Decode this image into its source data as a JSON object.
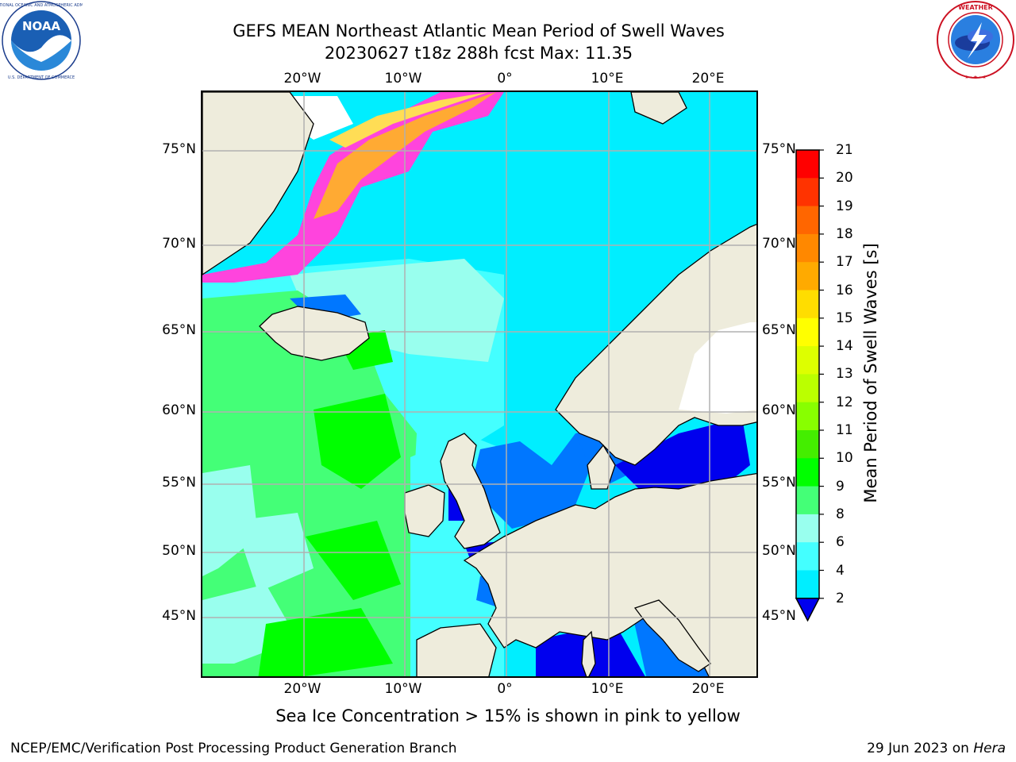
{
  "header": {
    "title_line1": "GEFS MEAN Northeast Atlantic Mean Period of Swell Waves",
    "title_line2": "20230627 t18z 288h fcst   Max: 11.35"
  },
  "logos": {
    "noaa": {
      "icon": "noaa-logo-icon",
      "text": "NOAA",
      "ring_text": "NATIONAL OCEANIC AND ATMOSPHERIC ADMINISTRATION · U.S. DEPARTMENT OF COMMERCE"
    },
    "nws": {
      "icon": "nws-logo-icon",
      "ring_text": "NATIONAL WEATHER SERVICE"
    }
  },
  "map": {
    "region": "Northeast Atlantic",
    "lon_labels": [
      "20°W",
      "10°W",
      "0°",
      "10°E",
      "20°E"
    ],
    "lat_labels_left": [
      "75°N",
      "70°N",
      "65°N",
      "60°N",
      "55°N",
      "50°N",
      "45°N"
    ],
    "lat_labels_right": [
      "75°N",
      "70°N",
      "65°N",
      "60°N",
      "55°N",
      "50°N",
      "45°N"
    ],
    "colors": {
      "land": "#eeecdc",
      "ice_pink": "#ff44dd",
      "ice_orange": "#ffaa33",
      "ice_yellow": "#ffdd55",
      "no_data": "#ffffff",
      "grid": "#b0b0b0"
    }
  },
  "colorbar": {
    "label": "Mean Period of Swell Waves [s]",
    "ticks": [
      "21",
      "20",
      "19",
      "18",
      "17",
      "16",
      "15",
      "14",
      "13",
      "12",
      "11",
      "10",
      "9",
      "8",
      "6",
      "4",
      "2"
    ],
    "colors": [
      "#ff0000",
      "#ff3300",
      "#ff6600",
      "#ff8800",
      "#ffaa00",
      "#ffdd00",
      "#ffff00",
      "#ddff00",
      "#bbff00",
      "#88ff00",
      "#44ee00",
      "#00ff00",
      "#44ff77",
      "#99ffee",
      "#44ffff",
      "#00eeff",
      "#0077ff",
      "#0000ee"
    ]
  },
  "footer": {
    "note": "Sea Ice Concentration > 15% is shown in pink to yellow",
    "credit_left": "NCEP/EMC/Verification Post Processing Product Generation Branch",
    "credit_date": "29 Jun 2023 on ",
    "credit_machine": "Hera"
  }
}
